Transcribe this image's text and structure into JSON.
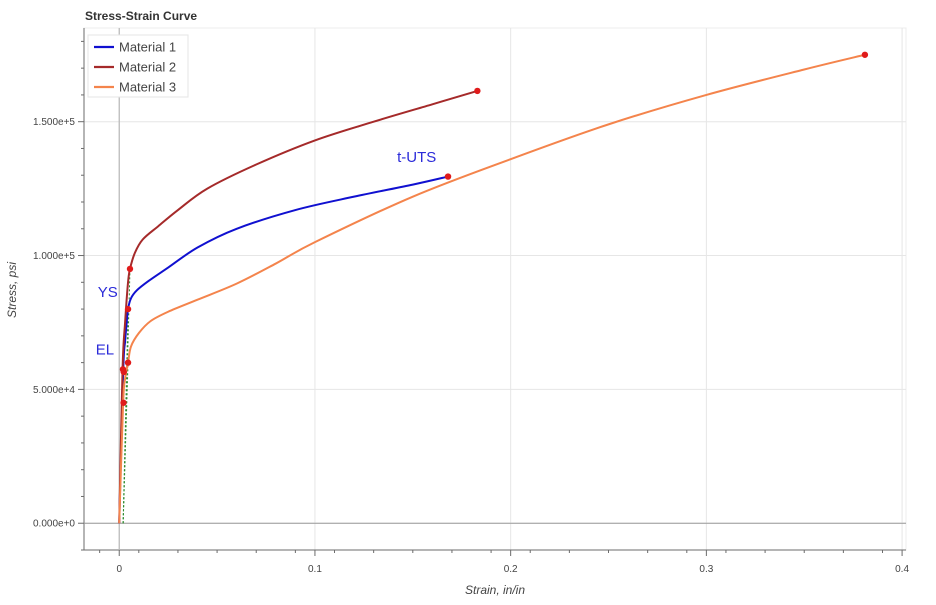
{
  "chart_data": {
    "type": "line",
    "title": "Stress-Strain Curve",
    "xlabel": "Strain, in/in",
    "ylabel": "Stress, psi",
    "xlim": [
      -0.018,
      0.402
    ],
    "ylim": [
      -10000,
      185000
    ],
    "x_ticks": [
      0,
      0.1,
      0.2,
      0.3,
      0.4
    ],
    "x_tick_labels": [
      "0",
      "0.1",
      "0.2",
      "0.3",
      "0.4"
    ],
    "y_ticks": [
      0,
      50000,
      100000,
      150000
    ],
    "y_tick_labels": [
      "0.000e+0",
      "5.000e+4",
      "1.000e+5",
      "1.500e+5"
    ],
    "grid": true,
    "legend_position": "top-left",
    "colors": {
      "grid": "#e6e6e6",
      "axis": "#6b6b6b",
      "annotation": "#2b2bd9",
      "point": "#e01b1b",
      "offset_line": "#2e8b2e"
    },
    "series": [
      {
        "name": "Material 1",
        "color": "#1010d0",
        "x": [
          0,
          0.002,
          0.003,
          0.0037,
          0.0045,
          0.006,
          0.009,
          0.015,
          0.025,
          0.04,
          0.06,
          0.09,
          0.12,
          0.15,
          0.168
        ],
        "y": [
          0,
          56500,
          68000,
          74000,
          80000,
          84000,
          87000,
          90500,
          95500,
          103000,
          110000,
          117000,
          122000,
          126500,
          129500
        ]
      },
      {
        "name": "Material 2",
        "color": "#a52a2a",
        "x": [
          0,
          0.0017,
          0.003,
          0.0045,
          0.0055,
          0.008,
          0.012,
          0.02,
          0.03,
          0.045,
          0.07,
          0.1,
          0.13,
          0.16,
          0.183
        ],
        "y": [
          0,
          57500,
          75000,
          90000,
          95000,
          101000,
          106000,
          111000,
          117000,
          125000,
          134000,
          143000,
          150000,
          156500,
          161500
        ]
      },
      {
        "name": "Material 3",
        "color": "#f4844c",
        "x": [
          0,
          0.002,
          0.003,
          0.0045,
          0.006,
          0.01,
          0.016,
          0.025,
          0.04,
          0.06,
          0.08,
          0.1,
          0.15,
          0.2,
          0.25,
          0.3,
          0.35,
          0.381
        ],
        "y": [
          0,
          45000,
          54000,
          60000,
          66000,
          71000,
          75500,
          79000,
          83500,
          89500,
          97000,
          105000,
          122000,
          136000,
          149000,
          160000,
          169500,
          175000
        ]
      }
    ],
    "markers": [
      {
        "series": "Material 1",
        "label": "EL",
        "x": 0.0023,
        "y": 56500
      },
      {
        "series": "Material 1",
        "label": "YS",
        "x": 0.0045,
        "y": 80000
      },
      {
        "series": "Material 1",
        "label": "t-UTS",
        "x": 0.168,
        "y": 129500
      },
      {
        "series": "Material 2",
        "x": 0.0019,
        "y": 57500
      },
      {
        "series": "Material 2",
        "x": 0.0055,
        "y": 95000
      },
      {
        "series": "Material 2",
        "x": 0.183,
        "y": 161500
      },
      {
        "series": "Material 3",
        "x": 0.0022,
        "y": 45000
      },
      {
        "series": "Material 3",
        "x": 0.0045,
        "y": 60000
      },
      {
        "series": "Material 3",
        "x": 0.381,
        "y": 175000
      }
    ],
    "offset_lines": [
      {
        "x": [
          0.002,
          0.0045
        ],
        "y": [
          0,
          80000
        ]
      },
      {
        "x": [
          0.002,
          0.0055
        ],
        "y": [
          0,
          95000
        ]
      },
      {
        "x": [
          0.002,
          0.0045
        ],
        "y": [
          0,
          60000
        ]
      }
    ],
    "annotations": [
      {
        "text": "EL",
        "x": -0.012,
        "y": 63000
      },
      {
        "text": "YS",
        "x": -0.011,
        "y": 84500
      },
      {
        "text": "t-UTS",
        "x": 0.142,
        "y": 135000
      }
    ]
  }
}
